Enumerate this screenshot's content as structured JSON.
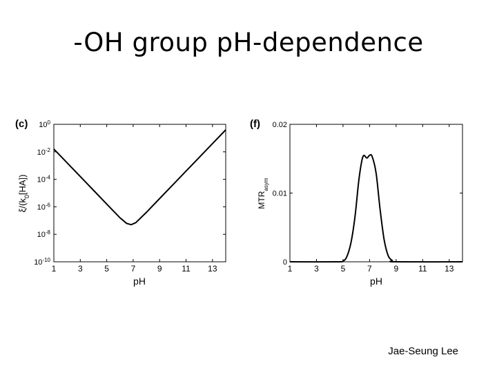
{
  "title": "-OH group pH-dependence",
  "author": "Jae-Seung Lee",
  "chart_data": [
    {
      "type": "line",
      "panel_label": "(c)",
      "xlabel": "pH",
      "ylabel_parts": {
        "a": "ξ",
        "b": "/(k",
        "c": "0",
        "d": "[HA])"
      },
      "yscale": "log",
      "xlim": [
        1,
        14
      ],
      "ylim_log10": [
        -10,
        0
      ],
      "xticks": [
        "1",
        "3",
        "5",
        "7",
        "9",
        "11",
        "13"
      ],
      "xtick_values": [
        1,
        3,
        5,
        7,
        9,
        11,
        13
      ],
      "yticks": [
        {
          "base": "10",
          "exp": "0",
          "log10": 0
        },
        {
          "base": "10",
          "exp": "-2",
          "log10": -2
        },
        {
          "base": "10",
          "exp": "-4",
          "log10": -4
        },
        {
          "base": "10",
          "exp": "-6",
          "log10": -6
        },
        {
          "base": "10",
          "exp": "-8",
          "log10": -8
        },
        {
          "base": "10",
          "exp": "-10",
          "log10": -10
        }
      ],
      "series": [
        {
          "x": [
            1,
            2,
            3,
            4,
            5,
            6,
            6.5,
            6.85,
            7.2,
            8,
            9,
            10,
            11,
            12,
            13,
            14
          ],
          "y_log10": [
            -1.8,
            -2.8,
            -3.8,
            -4.8,
            -5.8,
            -6.8,
            -7.2,
            -7.3,
            -7.15,
            -6.4,
            -5.4,
            -4.4,
            -3.4,
            -2.4,
            -1.4,
            -0.4
          ]
        }
      ],
      "grid": false
    },
    {
      "type": "line",
      "panel_label": "(f)",
      "xlabel": "pH",
      "ylabel_parts": {
        "a": "MTR",
        "b": "asym"
      },
      "xlim": [
        1,
        14
      ],
      "ylim": [
        0,
        0.02
      ],
      "xticks": [
        "1",
        "3",
        "5",
        "7",
        "9",
        "11",
        "13"
      ],
      "xtick_values": [
        1,
        3,
        5,
        7,
        9,
        11,
        13
      ],
      "yticks": [
        "0",
        "0.01",
        "0.02"
      ],
      "ytick_values": [
        0,
        0.01,
        0.02
      ],
      "series": [
        {
          "x": [
            1,
            4.5,
            5,
            5.3,
            5.6,
            5.9,
            6.2,
            6.5,
            6.8,
            7.0,
            7.2,
            7.5,
            7.8,
            8.1,
            8.4,
            8.7,
            9,
            14
          ],
          "y": [
            0,
            0,
            0.0001,
            0.0008,
            0.0028,
            0.0065,
            0.012,
            0.0153,
            0.0151,
            0.0155,
            0.0153,
            0.0128,
            0.0075,
            0.0032,
            0.0009,
            0.0002,
            0,
            0
          ]
        }
      ],
      "grid": false
    }
  ]
}
